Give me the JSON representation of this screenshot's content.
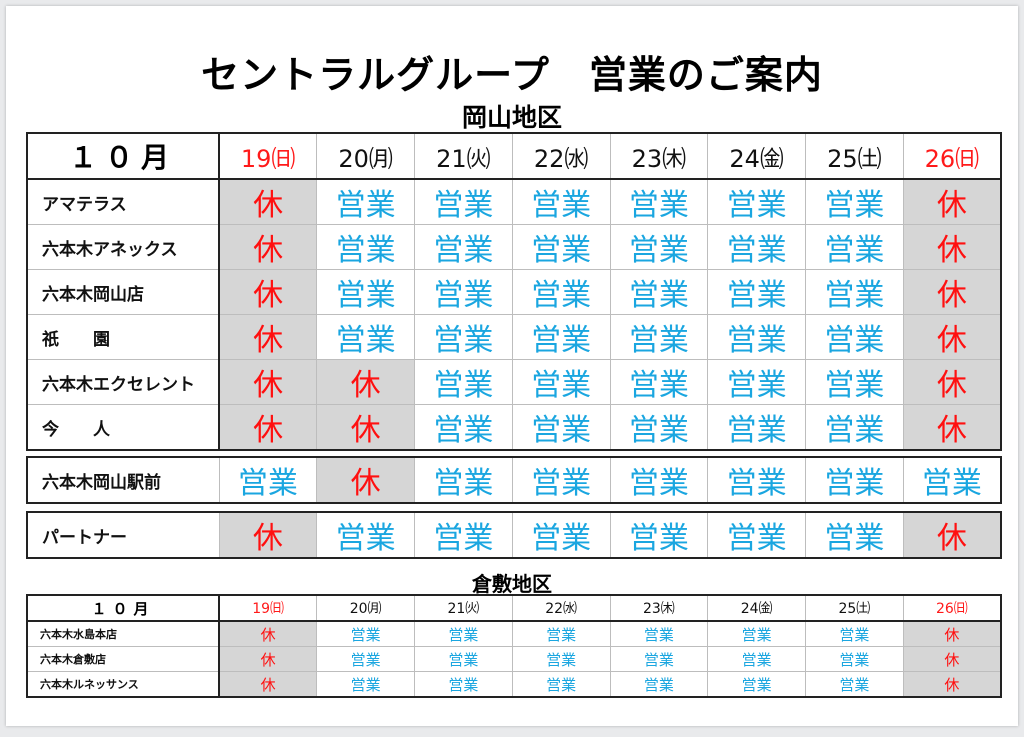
{
  "title": "セントラルグループ　営業のご案内",
  "region_okayama": "岡山地区",
  "region_kurashiki": "倉敷地区",
  "month_label": "１０月",
  "small_month_label": "１０月",
  "days": [
    "19㈰",
    "20㈪",
    "21㈫",
    "22㈬",
    "23㈭",
    "24㈮",
    "25㈯",
    "26㈰"
  ],
  "status": {
    "open": "営業",
    "closed": "休"
  },
  "okayama_rows": [
    {
      "name": "アマテラス",
      "cells": [
        "休",
        "営業",
        "営業",
        "営業",
        "営業",
        "営業",
        "営業",
        "休"
      ]
    },
    {
      "name": "六本木アネックス",
      "cells": [
        "休",
        "営業",
        "営業",
        "営業",
        "営業",
        "営業",
        "営業",
        "休"
      ]
    },
    {
      "name": "六本木岡山店",
      "cells": [
        "休",
        "営業",
        "営業",
        "営業",
        "営業",
        "営業",
        "営業",
        "休"
      ]
    },
    {
      "name": "祇　　園",
      "cells": [
        "休",
        "営業",
        "営業",
        "営業",
        "営業",
        "営業",
        "営業",
        "休"
      ]
    },
    {
      "name": "六本木エクセレント",
      "cells": [
        "休",
        "休",
        "営業",
        "営業",
        "営業",
        "営業",
        "営業",
        "休"
      ]
    },
    {
      "name": "今　　人",
      "cells": [
        "休",
        "休",
        "営業",
        "営業",
        "営業",
        "営業",
        "営業",
        "休"
      ]
    }
  ],
  "station_row": {
    "name": "六本木岡山駅前",
    "cells": [
      "営業",
      "休",
      "営業",
      "営業",
      "営業",
      "営業",
      "営業",
      "営業"
    ]
  },
  "partner_row": {
    "name": "パートナー",
    "cells": [
      "休",
      "営業",
      "営業",
      "営業",
      "営業",
      "営業",
      "営業",
      "休"
    ]
  },
  "kurashiki_rows": [
    {
      "name": "六本木水島本店",
      "cells": [
        "休",
        "営業",
        "営業",
        "営業",
        "営業",
        "営業",
        "営業",
        "休"
      ]
    },
    {
      "name": "六本木倉敷店",
      "cells": [
        "休",
        "営業",
        "営業",
        "営業",
        "営業",
        "営業",
        "営業",
        "休"
      ]
    },
    {
      "name": "六本木ルネッサンス",
      "cells": [
        "休",
        "営業",
        "営業",
        "営業",
        "営業",
        "営業",
        "営業",
        "休"
      ]
    }
  ]
}
